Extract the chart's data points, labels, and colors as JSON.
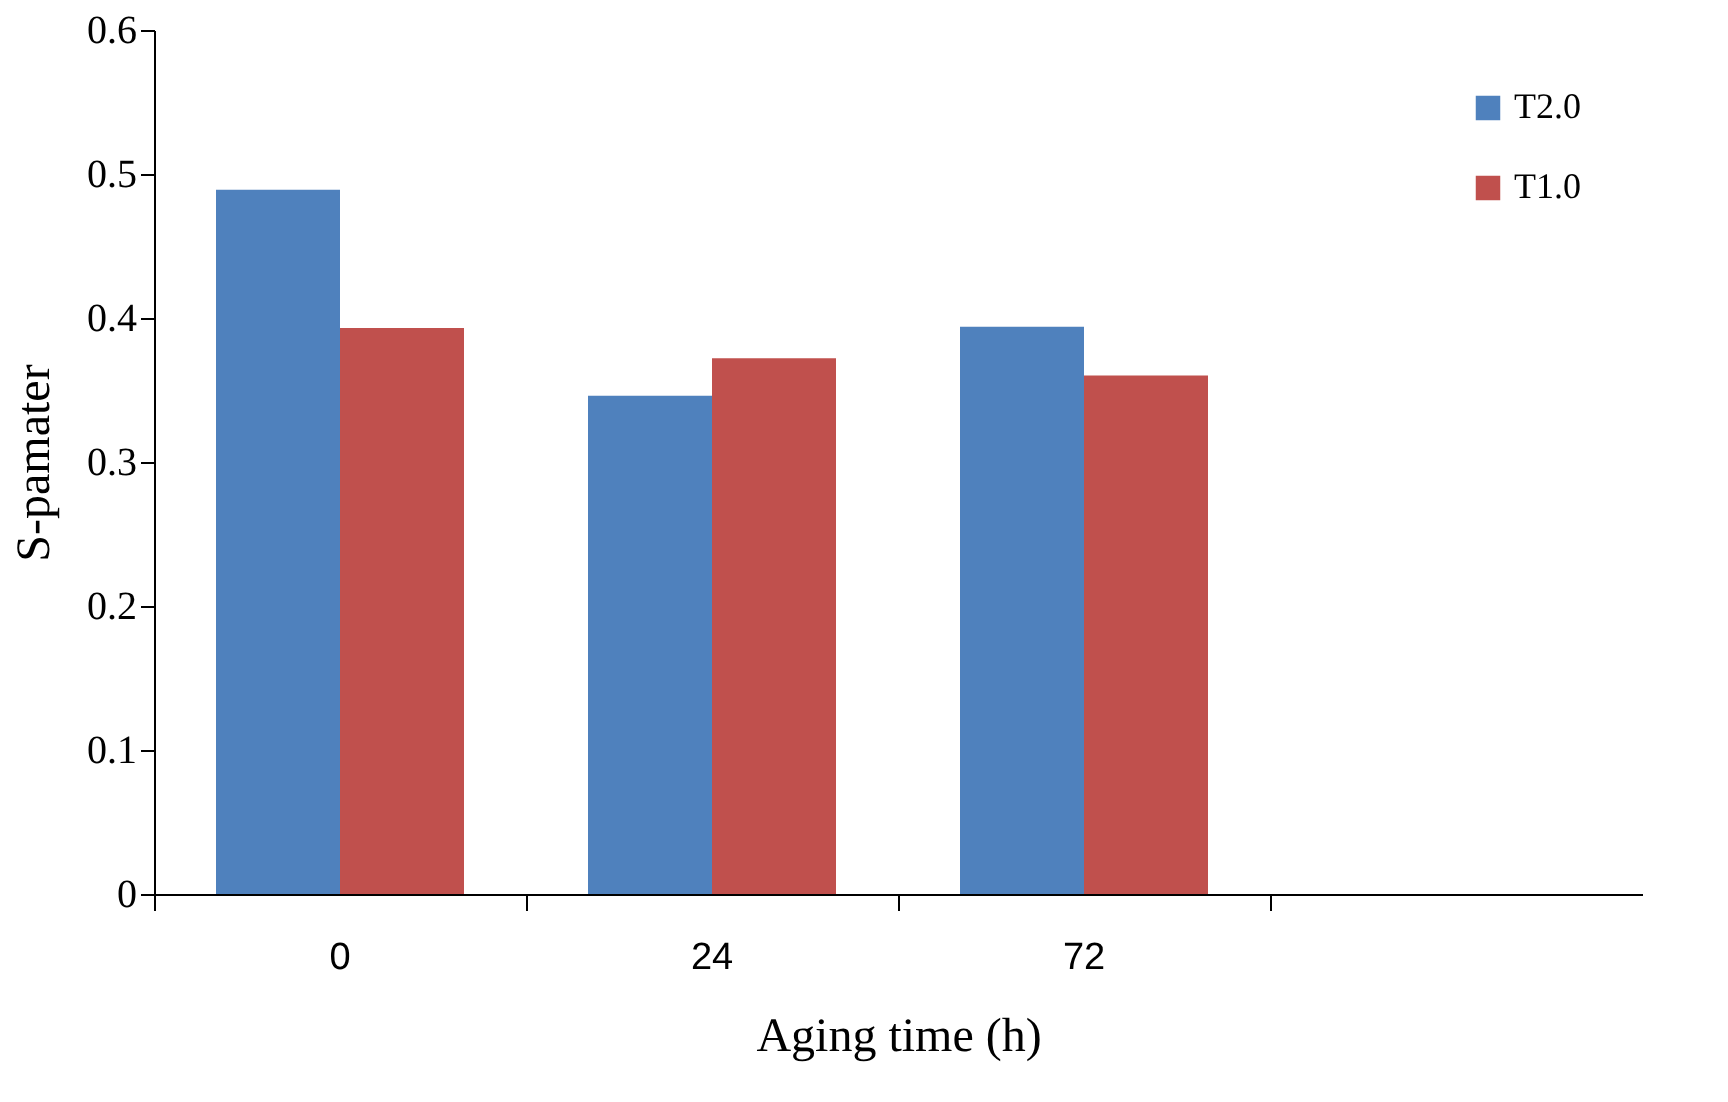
{
  "chart_data": {
    "type": "bar",
    "xlabel": "Aging time (h)",
    "ylabel": "S-pamater",
    "categories": [
      "0",
      "24",
      "72",
      null
    ],
    "series": [
      {
        "name": "T2.0",
        "color": "#4f81bd",
        "values": [
          0.489,
          0.346,
          0.394,
          null
        ]
      },
      {
        "name": "T1.0",
        "color": "#c0504d",
        "values": [
          0.393,
          0.372,
          0.36,
          null
        ]
      }
    ],
    "ylim": [
      0,
      0.6
    ],
    "yticks": [
      {
        "value": 0,
        "label": "0"
      },
      0.1,
      0.2,
      0.3,
      0.4,
      0.5,
      0.6
    ],
    "grid": false,
    "legend": "top right"
  }
}
